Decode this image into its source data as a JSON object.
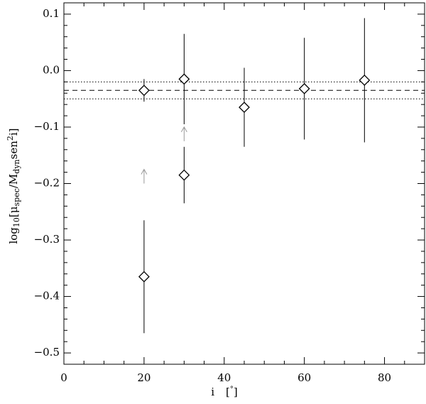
{
  "chart_data": {
    "type": "scatter",
    "x_label": [
      "i",
      "[",
      "°",
      "]"
    ],
    "y_label": [
      "log",
      "10",
      "[μ",
      "spec",
      "/M",
      "dyn",
      "sen",
      "2",
      "i]"
    ],
    "xlim": [
      0,
      90
    ],
    "ylim": [
      -0.52,
      0.12
    ],
    "xticks": [
      0,
      20,
      40,
      60,
      80
    ],
    "yticks": [
      {
        "value": -0.5,
        "label": "−0.5"
      },
      {
        "value": -0.4,
        "label": "−0.4"
      },
      {
        "value": -0.3,
        "label": "−0.3"
      },
      {
        "value": -0.2,
        "label": "−0.2"
      },
      {
        "value": -0.1,
        "label": "−0.1"
      },
      {
        "value": 0,
        "label": "0.0"
      },
      0.1
    ],
    "x_minor_ticks": [
      5,
      10,
      15,
      25,
      30,
      35,
      45,
      50,
      55,
      65,
      70,
      75,
      85
    ],
    "y_minor_ticks": [
      -0.48,
      -0.46,
      -0.44,
      -0.42,
      -0.38,
      -0.36,
      -0.34,
      -0.32,
      -0.28,
      -0.26,
      -0.24,
      -0.22,
      -0.18,
      -0.16,
      -0.14,
      -0.12,
      -0.08,
      -0.06,
      -0.04,
      -0.02,
      0.02,
      0.04,
      0.06,
      0.08,
      0.12
    ],
    "points": {
      "x": [
        20,
        20,
        30,
        30,
        45,
        60,
        75
      ],
      "values": [
        -0.365,
        -0.035,
        -0.015,
        -0.185,
        -0.065,
        -0.032,
        -0.017
      ],
      "errors": [
        0.1,
        0.02,
        0.08,
        0.05,
        0.07,
        0.09,
        0.11
      ],
      "color": "#000000"
    },
    "arrows": {
      "x": [
        20,
        30
      ],
      "values": [
        -0.2,
        -0.125
      ],
      "color": "#999999"
    },
    "hlines": [
      {
        "value": -0.035,
        "style": "dashed"
      },
      {
        "value": -0.02,
        "style": "dotted"
      },
      {
        "value": -0.05,
        "style": "dotted"
      }
    ]
  }
}
